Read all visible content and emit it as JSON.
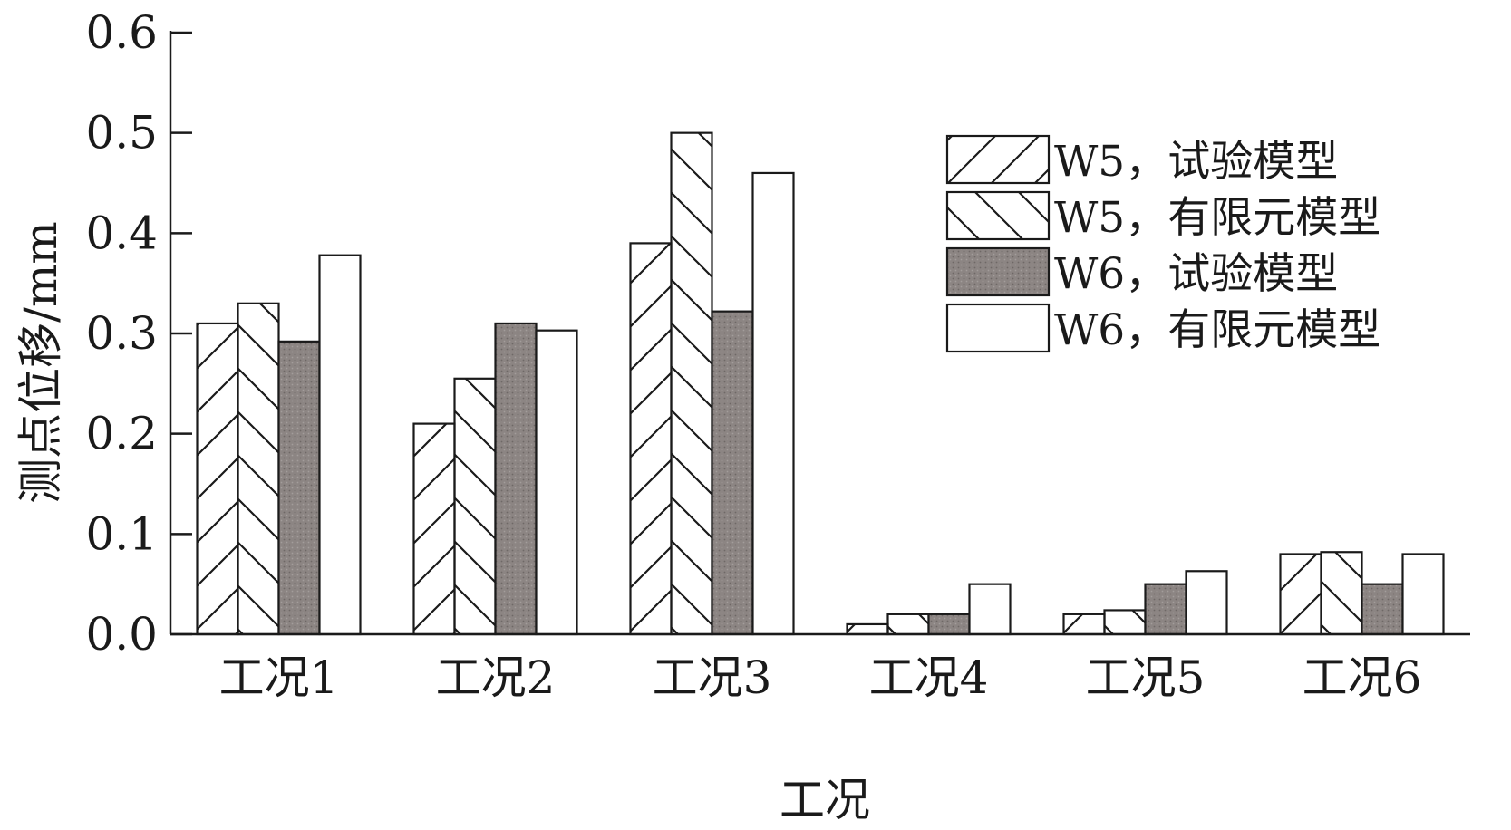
{
  "chart_data": {
    "type": "bar",
    "title": "",
    "xlabel": "工况",
    "ylabel": "测点位移/mm",
    "ylim": [
      0,
      0.6
    ],
    "yticks": [
      "0.0",
      "0.1",
      "0.2",
      "0.3",
      "0.4",
      "0.5",
      "0.6"
    ],
    "categories": [
      "工况1",
      "工况2",
      "工况3",
      "工况4",
      "工况5",
      "工况6"
    ],
    "legend_position": "top-right",
    "grid": false,
    "series": [
      {
        "name": "W5，试验模型",
        "pattern": "hatch-forward",
        "values": [
          0.31,
          0.21,
          0.39,
          0.01,
          0.02,
          0.08
        ]
      },
      {
        "name": "W5，有限元模型",
        "pattern": "hatch-back",
        "values": [
          0.33,
          0.255,
          0.5,
          0.02,
          0.024,
          0.082
        ]
      },
      {
        "name": "W6，试验模型",
        "pattern": "solid-gray",
        "color": "#8c8583",
        "values": [
          0.292,
          0.31,
          0.322,
          0.02,
          0.05,
          0.05
        ]
      },
      {
        "name": "W6，有限元模型",
        "pattern": "solid-white",
        "color": "#ffffff",
        "values": [
          0.378,
          0.303,
          0.46,
          0.05,
          0.063,
          0.08
        ]
      }
    ]
  }
}
